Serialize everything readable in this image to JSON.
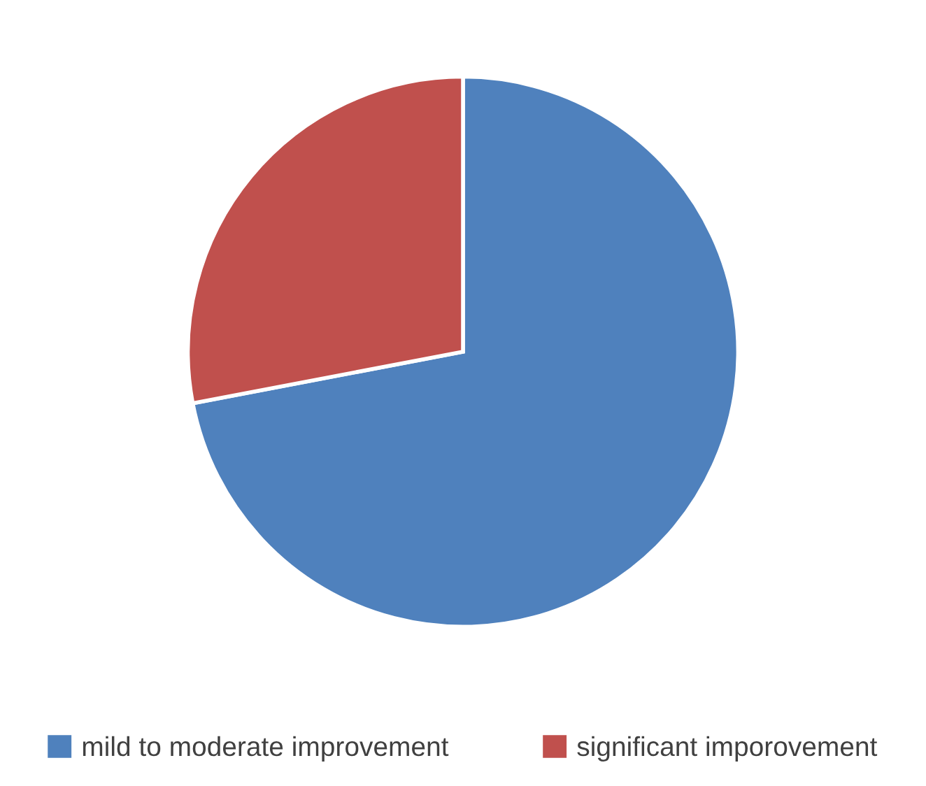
{
  "chart_data": {
    "type": "pie",
    "categories": [
      "mild to moderate improvement",
      "significant imporovement"
    ],
    "values": [
      72,
      28
    ],
    "colors": [
      "#4f81bd",
      "#c0504d"
    ],
    "legend": "bottom"
  }
}
